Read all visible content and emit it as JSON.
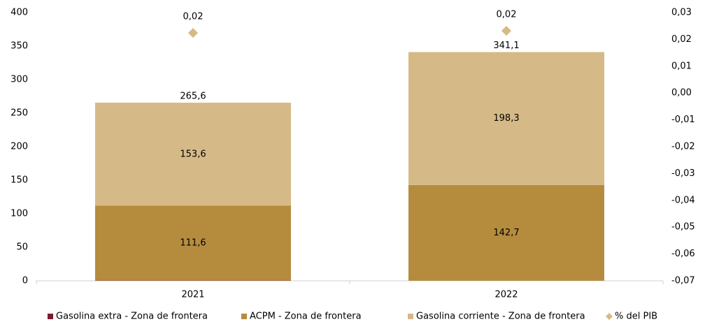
{
  "chart_data": {
    "type": "stacked-bar",
    "categories": [
      "2021",
      "2022"
    ],
    "series": [
      {
        "name": "Gasolina extra - Zona de frontera",
        "color": "#7b1b34",
        "values": [
          0.4,
          0.1
        ]
      },
      {
        "name": "ACPM - Zona de frontera",
        "color": "#b58c3e",
        "values": [
          111.6,
          142.7
        ],
        "value_labels": [
          "111,6",
          "142,7"
        ]
      },
      {
        "name": "Gasolina corriente - Zona de frontera",
        "color": "#d5ba87",
        "values": [
          153.6,
          198.3
        ],
        "value_labels": [
          "153,6",
          "198,3"
        ]
      },
      {
        "name": "% del PIB",
        "type": "scatter",
        "marker": "diamond",
        "axis": "y2",
        "color": "#d5ba87",
        "values": [
          0.0224,
          0.0232
        ],
        "value_labels": [
          "0,02",
          "0,02"
        ]
      }
    ],
    "totals": [
      265.6,
      341.1
    ],
    "total_labels": [
      "265,6",
      "341,1"
    ],
    "ylim": [
      0,
      400
    ],
    "yticks": [
      0,
      50,
      100,
      150,
      200,
      250,
      300,
      350,
      400
    ],
    "y2lim": [
      -0.07,
      0.03
    ],
    "y2ticks": [
      {
        "value": 0.03,
        "label": "0,03"
      },
      {
        "value": 0.02,
        "label": "0,02"
      },
      {
        "value": 0.01,
        "label": "0,01"
      },
      {
        "value": 0,
        "label": "0,00"
      },
      {
        "value": -0.01,
        "label": "-0,01"
      },
      {
        "value": -0.02,
        "label": "-0,02"
      },
      {
        "value": -0.03,
        "label": "-0,03"
      },
      {
        "value": -0.04,
        "label": "-0,04"
      },
      {
        "value": -0.05,
        "label": "-0,05"
      },
      {
        "value": -0.06,
        "label": "-0,06"
      },
      {
        "value": -0.07,
        "label": "-0,07"
      }
    ],
    "legend": "bottom"
  }
}
